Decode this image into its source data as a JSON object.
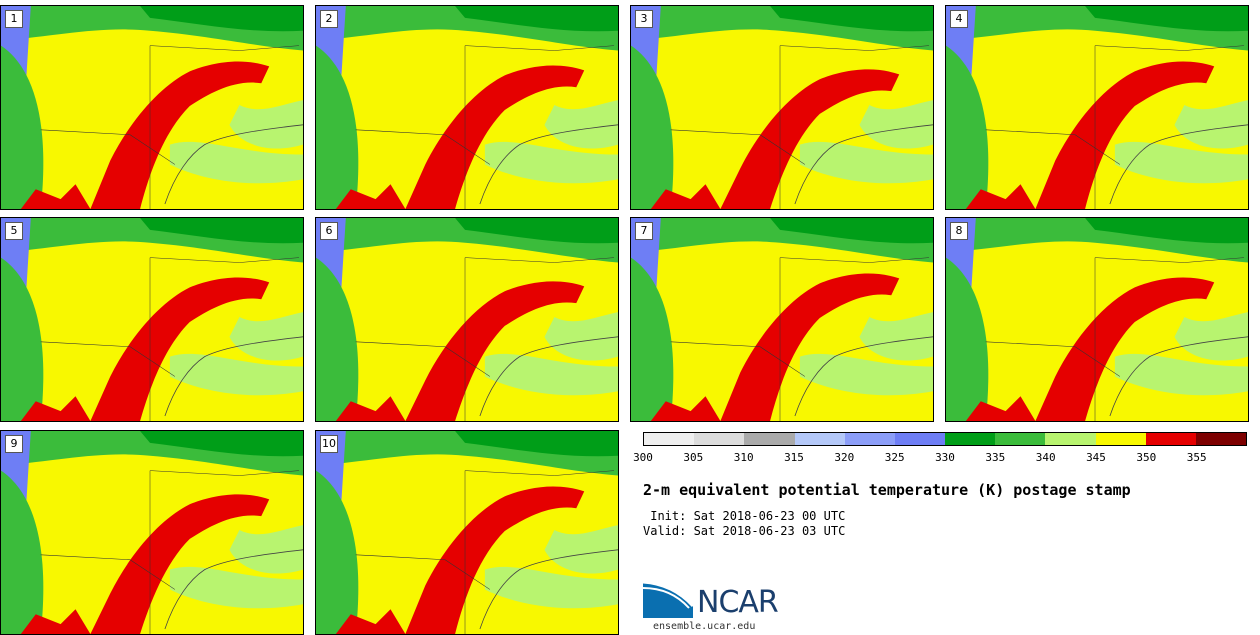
{
  "panels": [
    {
      "label": "1"
    },
    {
      "label": "2"
    },
    {
      "label": "3"
    },
    {
      "label": "4"
    },
    {
      "label": "5"
    },
    {
      "label": "6"
    },
    {
      "label": "7"
    },
    {
      "label": "8"
    },
    {
      "label": "9"
    },
    {
      "label": "10"
    }
  ],
  "colorbar": {
    "colors": [
      "#efefef",
      "#dcdcdc",
      "#aaaaaa",
      "#b4c8f8",
      "#8c9ef8",
      "#6e7ef5",
      "#009e18",
      "#3bbc3b",
      "#b8f46f",
      "#f8f800",
      "#e50000",
      "#7d0000"
    ],
    "ticks": [
      "300",
      "305",
      "310",
      "315",
      "320",
      "325",
      "330",
      "335",
      "340",
      "345",
      "350",
      "355"
    ]
  },
  "title": "2-m equivalent potential temperature (K) postage stamp",
  "init": " Init: Sat 2018-06-23 00 UTC",
  "valid": "Valid: Sat 2018-06-23 03 UTC",
  "logo": {
    "text": "NCAR",
    "url": "ensemble.ucar.edu"
  }
}
